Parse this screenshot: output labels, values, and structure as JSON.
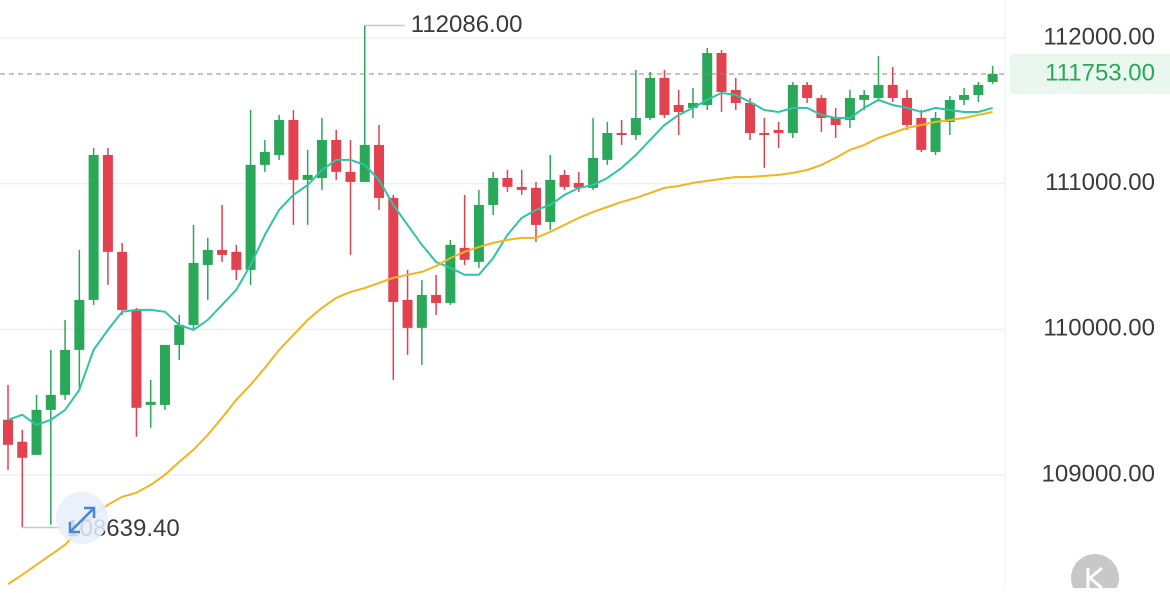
{
  "chart_data": {
    "type": "candlestick",
    "ylim": [
      108224,
      112261
    ],
    "yticks": [
      {
        "value": 112000,
        "label": "112000.00"
      },
      {
        "value": 111000,
        "label": "111000.00"
      },
      {
        "value": 110000,
        "label": "110000.00"
      },
      {
        "value": 109000,
        "label": "109000.00"
      }
    ],
    "grid": true,
    "up_color": "#2aa85a",
    "down_color": "#e2414f",
    "open": [
      109379,
      109228,
      109138,
      109447,
      109550,
      109859,
      110202,
      111197,
      110532,
      110133,
      109481,
      109481,
      109893,
      110030,
      110442,
      110545,
      110532,
      110408,
      111129,
      111197,
      111437,
      111026,
      111039,
      111300,
      111081,
      111012,
      111266,
      110902,
      110202,
      110010,
      110236,
      110181,
      110559,
      110463,
      110854,
      111039,
      110978,
      110971,
      110737,
      111060,
      111005,
      110971,
      111163,
      111348,
      111334,
      111451,
      111726,
      111540,
      111520,
      111540,
      111897,
      111643,
      111554,
      111348,
      111369,
      111348,
      111678,
      111588,
      111451,
      111437,
      111575,
      111588,
      111678,
      111588,
      111451,
      111218,
      111424,
      111575,
      111609,
      111698
    ],
    "high": [
      109619,
      109310,
      109550,
      109859,
      110065,
      110545,
      111245,
      111245,
      110593,
      110147,
      109653,
      109893,
      110099,
      110717,
      110628,
      110854,
      110580,
      111506,
      111300,
      111472,
      111506,
      111232,
      111451,
      111369,
      111300,
      112086,
      111403,
      110923,
      110408,
      110339,
      110374,
      110614,
      110923,
      110957,
      111081,
      111094,
      111094,
      111012,
      111197,
      111094,
      111081,
      111451,
      111424,
      111437,
      111781,
      111767,
      111781,
      111643,
      111657,
      111932,
      111918,
      111726,
      111588,
      111451,
      111424,
      111698,
      111698,
      111609,
      111520,
      111643,
      111643,
      111877,
      111801,
      111643,
      111506,
      111492,
      111602,
      111657,
      111698,
      111808
    ],
    "low": [
      109035,
      108639.4,
      109138,
      108658,
      109516,
      109584,
      110168,
      110305,
      110099,
      109262,
      109324,
      109447,
      109790,
      109996,
      110202,
      110463,
      110339,
      110305,
      111081,
      111163,
      110717,
      110717,
      110957,
      111026,
      110511,
      111026,
      110820,
      109653,
      109825,
      109756,
      110099,
      110168,
      110442,
      110422,
      110785,
      110943,
      110923,
      110600,
      110683,
      110957,
      110943,
      110957,
      111129,
      111266,
      111300,
      111437,
      111451,
      111334,
      111451,
      111506,
      111492,
      111506,
      111300,
      111108,
      111245,
      111314,
      111554,
      111355,
      111314,
      111383,
      111506,
      111575,
      111561,
      111369,
      111218,
      111197,
      111334,
      111540,
      111561,
      111685
    ],
    "close": [
      109207,
      109118,
      109447,
      109550,
      109859,
      110202,
      111197,
      110532,
      110133,
      109461,
      109502,
      109893,
      110030,
      110456,
      110545,
      110511,
      110408,
      111129,
      111218,
      111437,
      111026,
      111060,
      111300,
      111081,
      111012,
      111266,
      110902,
      110188,
      110010,
      110236,
      110181,
      110580,
      110477,
      110854,
      111039,
      110978,
      110957,
      110717,
      111026,
      110978,
      110971,
      111177,
      111348,
      111334,
      111451,
      111726,
      111472,
      111492,
      111554,
      111897,
      111630,
      111554,
      111348,
      111334,
      111348,
      111678,
      111588,
      111451,
      111403,
      111588,
      111609,
      111678,
      111588,
      111403,
      111232,
      111451,
      111575,
      111609,
      111678,
      111753
    ],
    "ma_lines": [
      {
        "color": "#2ec4a6",
        "values": [
          109379,
          109413,
          109344,
          109379,
          109447,
          109584,
          109859,
          109996,
          110120,
          110133,
          110133,
          110120,
          110030,
          109996,
          110065,
          110168,
          110271,
          110442,
          110648,
          110820,
          110923,
          110991,
          111094,
          111163,
          111163,
          111129,
          111026,
          110854,
          110717,
          110580,
          110463,
          110422,
          110374,
          110374,
          110490,
          110648,
          110765,
          110820,
          110854,
          110923,
          110971,
          110991,
          111039,
          111108,
          111197,
          111300,
          111403,
          111472,
          111520,
          111575,
          111623,
          111609,
          111561,
          111506,
          111492,
          111520,
          111520,
          111472,
          111451,
          111451,
          111520,
          111575,
          111540,
          111520,
          111492,
          111520,
          111506,
          111492,
          111492,
          111520
        ]
      },
      {
        "color": "#f4b41e",
        "values": [
          108250,
          108315,
          108383,
          108452,
          108521,
          108624,
          108727,
          108795,
          108850,
          108878,
          108932,
          109001,
          109090,
          109173,
          109276,
          109392,
          109516,
          109619,
          109735,
          109859,
          109962,
          110065,
          110147,
          110216,
          110257,
          110284,
          110319,
          110353,
          110374,
          110394,
          110435,
          110490,
          110532,
          110566,
          110593,
          110614,
          110628,
          110628,
          110669,
          110717,
          110765,
          110806,
          110840,
          110875,
          110902,
          110936,
          110971,
          110984,
          111005,
          111019,
          111033,
          111046,
          111046,
          111053,
          111060,
          111074,
          111094,
          111129,
          111177,
          111232,
          111266,
          111314,
          111348,
          111383,
          111403,
          111424,
          111437,
          111451,
          111472,
          111492
        ]
      }
    ],
    "high_label": {
      "value": 112086,
      "label": "112086.00"
    },
    "low_label": {
      "value": 108639.4,
      "label": "108639.40"
    },
    "last_price": {
      "value": 111753,
      "label": "111753.00"
    }
  }
}
